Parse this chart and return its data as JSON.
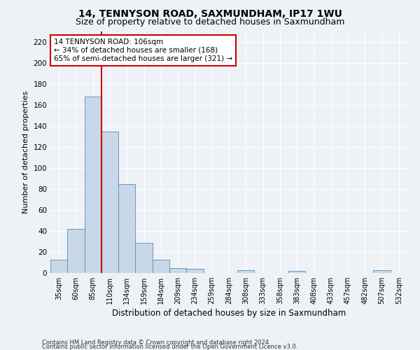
{
  "title": "14, TENNYSON ROAD, SAXMUNDHAM, IP17 1WU",
  "subtitle": "Size of property relative to detached houses in Saxmundham",
  "xlabel": "Distribution of detached houses by size in Saxmundham",
  "ylabel": "Number of detached properties",
  "footer1": "Contains HM Land Registry data © Crown copyright and database right 2024.",
  "footer2": "Contains public sector information licensed under the Open Government Licence v3.0.",
  "categories": [
    "35sqm",
    "60sqm",
    "85sqm",
    "110sqm",
    "134sqm",
    "159sqm",
    "184sqm",
    "209sqm",
    "234sqm",
    "259sqm",
    "284sqm",
    "308sqm",
    "333sqm",
    "358sqm",
    "383sqm",
    "408sqm",
    "433sqm",
    "457sqm",
    "482sqm",
    "507sqm",
    "532sqm"
  ],
  "values": [
    13,
    42,
    168,
    135,
    85,
    29,
    13,
    5,
    4,
    0,
    0,
    3,
    0,
    0,
    2,
    0,
    0,
    0,
    0,
    3,
    0
  ],
  "bar_color": "#c8d8e8",
  "bar_edge_color": "#5a8ab0",
  "vline_x": 2.5,
  "vline_color": "#cc0000",
  "annotation_text": "14 TENNYSON ROAD: 106sqm\n← 34% of detached houses are smaller (168)\n65% of semi-detached houses are larger (321) →",
  "annotation_box_color": "#ffffff",
  "annotation_box_edge": "#cc0000",
  "ylim": [
    0,
    230
  ],
  "yticks": [
    0,
    20,
    40,
    60,
    80,
    100,
    120,
    140,
    160,
    180,
    200,
    220
  ],
  "bg_color": "#eef2f7",
  "grid_color": "#ffffff",
  "title_fontsize": 10,
  "subtitle_fontsize": 9,
  "tick_fontsize": 7,
  "ylabel_fontsize": 8,
  "xlabel_fontsize": 8.5,
  "footer_fontsize": 6
}
